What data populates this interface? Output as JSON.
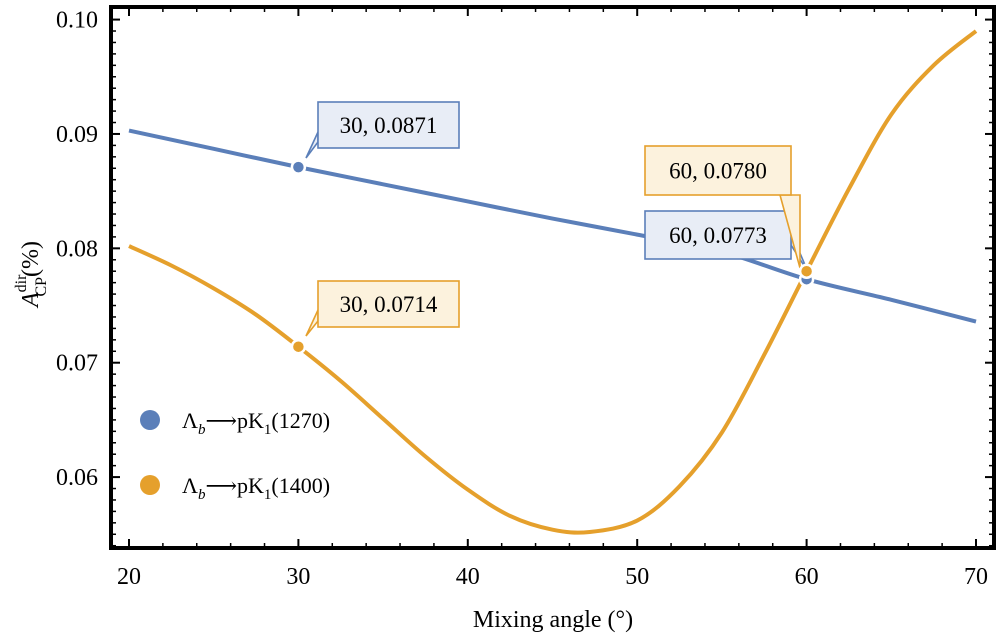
{
  "chart_data": {
    "type": "line",
    "title": "",
    "xlabel": "Mixing angle (°)",
    "ylabel_main": "A",
    "ylabel_sup": "dir",
    "ylabel_sub": "CP",
    "ylabel_suffix": "(%)",
    "xlim": [
      20,
      70
    ],
    "ylim": [
      0.0538,
      0.1011
    ],
    "x_ticks": [
      20,
      30,
      40,
      50,
      60,
      70
    ],
    "x_tick_labels": [
      "20",
      "30",
      "40",
      "50",
      "60",
      "70"
    ],
    "y_ticks": [
      0.06,
      0.07,
      0.08,
      0.09,
      0.1
    ],
    "y_tick_labels": [
      "0.06",
      "0.07",
      "0.08",
      "0.09",
      "0.10"
    ],
    "grid": false,
    "legend_position": "left",
    "series": [
      {
        "name": "Λb⟶pK1(1270)",
        "legend_main": "Λ",
        "legend_sub_b": "b",
        "legend_arrow": "⟶pK",
        "legend_sub_1": "1",
        "legend_tail": "(1270)",
        "color": "#5b7fb9",
        "label_bg": "#e8edf6",
        "x": [
          20,
          25,
          30,
          35,
          40,
          45,
          50,
          55,
          60,
          65,
          70
        ],
        "y": [
          0.0903,
          0.0887,
          0.0871,
          0.0856,
          0.0841,
          0.0826,
          0.0812,
          0.0797,
          0.0773,
          0.0755,
          0.0736
        ]
      },
      {
        "name": "Λb⟶pK1(1400)",
        "legend_main": "Λ",
        "legend_sub_b": "b",
        "legend_arrow": "⟶pK",
        "legend_sub_1": "1",
        "legend_tail": "(1400)",
        "color": "#e5a02c",
        "label_bg": "#fcf2dd",
        "x": [
          20,
          22.5,
          25,
          27.5,
          30,
          32.5,
          35,
          37.5,
          40,
          42.5,
          45,
          47.2,
          50,
          52.5,
          55,
          57.5,
          60,
          62.5,
          65,
          67.5,
          70
        ],
        "y": [
          0.0802,
          0.0785,
          0.0765,
          0.0742,
          0.0714,
          0.0684,
          0.0651,
          0.0618,
          0.0589,
          0.0566,
          0.0554,
          0.0552,
          0.0562,
          0.0592,
          0.0639,
          0.0707,
          0.078,
          0.0852,
          0.0917,
          0.096,
          0.099
        ]
      }
    ],
    "callouts": [
      {
        "series": 0,
        "x": 30,
        "y": 0.0871,
        "text": "30, 0.0871"
      },
      {
        "series": 0,
        "x": 60,
        "y": 0.0773,
        "text": "60, 0.0773"
      },
      {
        "series": 1,
        "x": 30,
        "y": 0.0714,
        "text": "30, 0.0714"
      },
      {
        "series": 1,
        "x": 60,
        "y": 0.078,
        "text": "60, 0.0780"
      }
    ]
  }
}
